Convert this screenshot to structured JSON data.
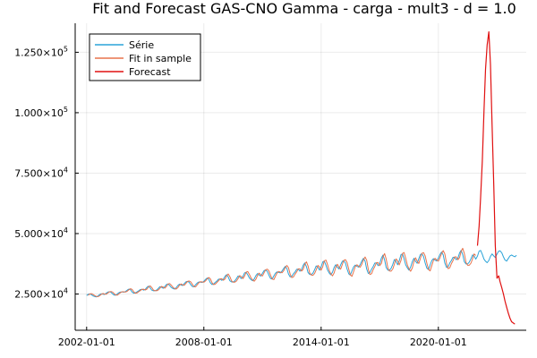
{
  "chart_data": {
    "type": "line",
    "title": "Fit and Forecast GAS-CNO Gamma - carga - mult3 - d = 1.0",
    "xlabel": "",
    "ylabel": "",
    "x_axis": {
      "type": "date",
      "range": [
        "2001-06-01",
        "2024-07-01"
      ],
      "ticks": [
        "2002-01-01",
        "2008-01-01",
        "2014-01-01",
        "2020-01-01"
      ]
    },
    "y_axis": {
      "range": [
        10000,
        137000
      ],
      "ticks": [
        {
          "value": 25000,
          "mantissa": "2.500",
          "exponent": "4"
        },
        {
          "value": 50000,
          "mantissa": "5.000",
          "exponent": "4"
        },
        {
          "value": 75000,
          "mantissa": "7.500",
          "exponent": "4"
        },
        {
          "value": 100000,
          "mantissa": "1.000",
          "exponent": "5"
        },
        {
          "value": 125000,
          "mantissa": "1.250",
          "exponent": "5"
        }
      ],
      "tick_suffix": "×10"
    },
    "grid": true,
    "legend_position": "top-left",
    "series": [
      {
        "name": "Série",
        "color": "#2aa3d8",
        "base": [
          [
            "2002-01-01",
            24200
          ],
          [
            "2004-01-01",
            25900
          ],
          [
            "2006-01-01",
            27800
          ],
          [
            "2008-01-01",
            30000
          ],
          [
            "2010-01-01",
            32000
          ],
          [
            "2012-01-01",
            34000
          ],
          [
            "2014-01-01",
            35800
          ],
          [
            "2016-01-01",
            36400
          ],
          [
            "2018-01-01",
            38200
          ],
          [
            "2020-01-01",
            39000
          ],
          [
            "2022-01-01",
            40300
          ],
          [
            "2023-06-01",
            41000
          ],
          [
            "2024-01-01",
            40500
          ]
        ],
        "seasonal_amplitude": [
          [
            "2002-01-01",
            700
          ],
          [
            "2008-01-01",
            1400
          ],
          [
            "2012-01-01",
            2200
          ],
          [
            "2016-01-01",
            3200
          ],
          [
            "2020-01-01",
            3400
          ],
          [
            "2022-06-01",
            2500
          ],
          [
            "2024-01-01",
            1900
          ]
        ],
        "start": "2002-01-01",
        "end": "2024-01-01"
      },
      {
        "name": "Fit in sample",
        "color": "#e8734c",
        "base": [
          [
            "2002-02-01",
            24300
          ],
          [
            "2004-01-01",
            25900
          ],
          [
            "2006-01-01",
            27800
          ],
          [
            "2008-01-01",
            30000
          ],
          [
            "2010-01-01",
            32000
          ],
          [
            "2012-01-01",
            34000
          ],
          [
            "2014-01-01",
            35800
          ],
          [
            "2016-01-01",
            36400
          ],
          [
            "2018-01-01",
            38200
          ],
          [
            "2020-01-01",
            39000
          ],
          [
            "2021-12-01",
            40300
          ]
        ],
        "seasonal_amplitude": [
          [
            "2002-01-01",
            700
          ],
          [
            "2008-01-01",
            1500
          ],
          [
            "2012-01-01",
            2500
          ],
          [
            "2016-01-01",
            3700
          ],
          [
            "2020-01-01",
            3900
          ],
          [
            "2022-01-01",
            3500
          ]
        ],
        "start": "2002-02-01",
        "end": "2021-12-01"
      },
      {
        "name": "Forecast",
        "color": "#e01010",
        "points": [
          [
            "2022-01-01",
            45000
          ],
          [
            "2022-02-01",
            53000
          ],
          [
            "2022-03-01",
            65000
          ],
          [
            "2022-04-01",
            80000
          ],
          [
            "2022-05-01",
            100000
          ],
          [
            "2022-06-01",
            118000
          ],
          [
            "2022-07-01",
            128000
          ],
          [
            "2022-08-01",
            133500
          ],
          [
            "2022-09-01",
            120000
          ],
          [
            "2022-10-01",
            95000
          ],
          [
            "2022-11-01",
            70000
          ],
          [
            "2022-12-01",
            45000
          ],
          [
            "2023-01-01",
            31500
          ],
          [
            "2023-02-01",
            32500
          ],
          [
            "2023-03-01",
            30000
          ],
          [
            "2023-04-01",
            27500
          ],
          [
            "2023-05-01",
            25000
          ],
          [
            "2023-06-01",
            22000
          ],
          [
            "2023-07-01",
            19500
          ],
          [
            "2023-08-01",
            17000
          ],
          [
            "2023-09-01",
            15000
          ],
          [
            "2023-10-01",
            13500
          ],
          [
            "2023-11-01",
            13000
          ],
          [
            "2023-12-01",
            12500
          ]
        ]
      }
    ]
  }
}
